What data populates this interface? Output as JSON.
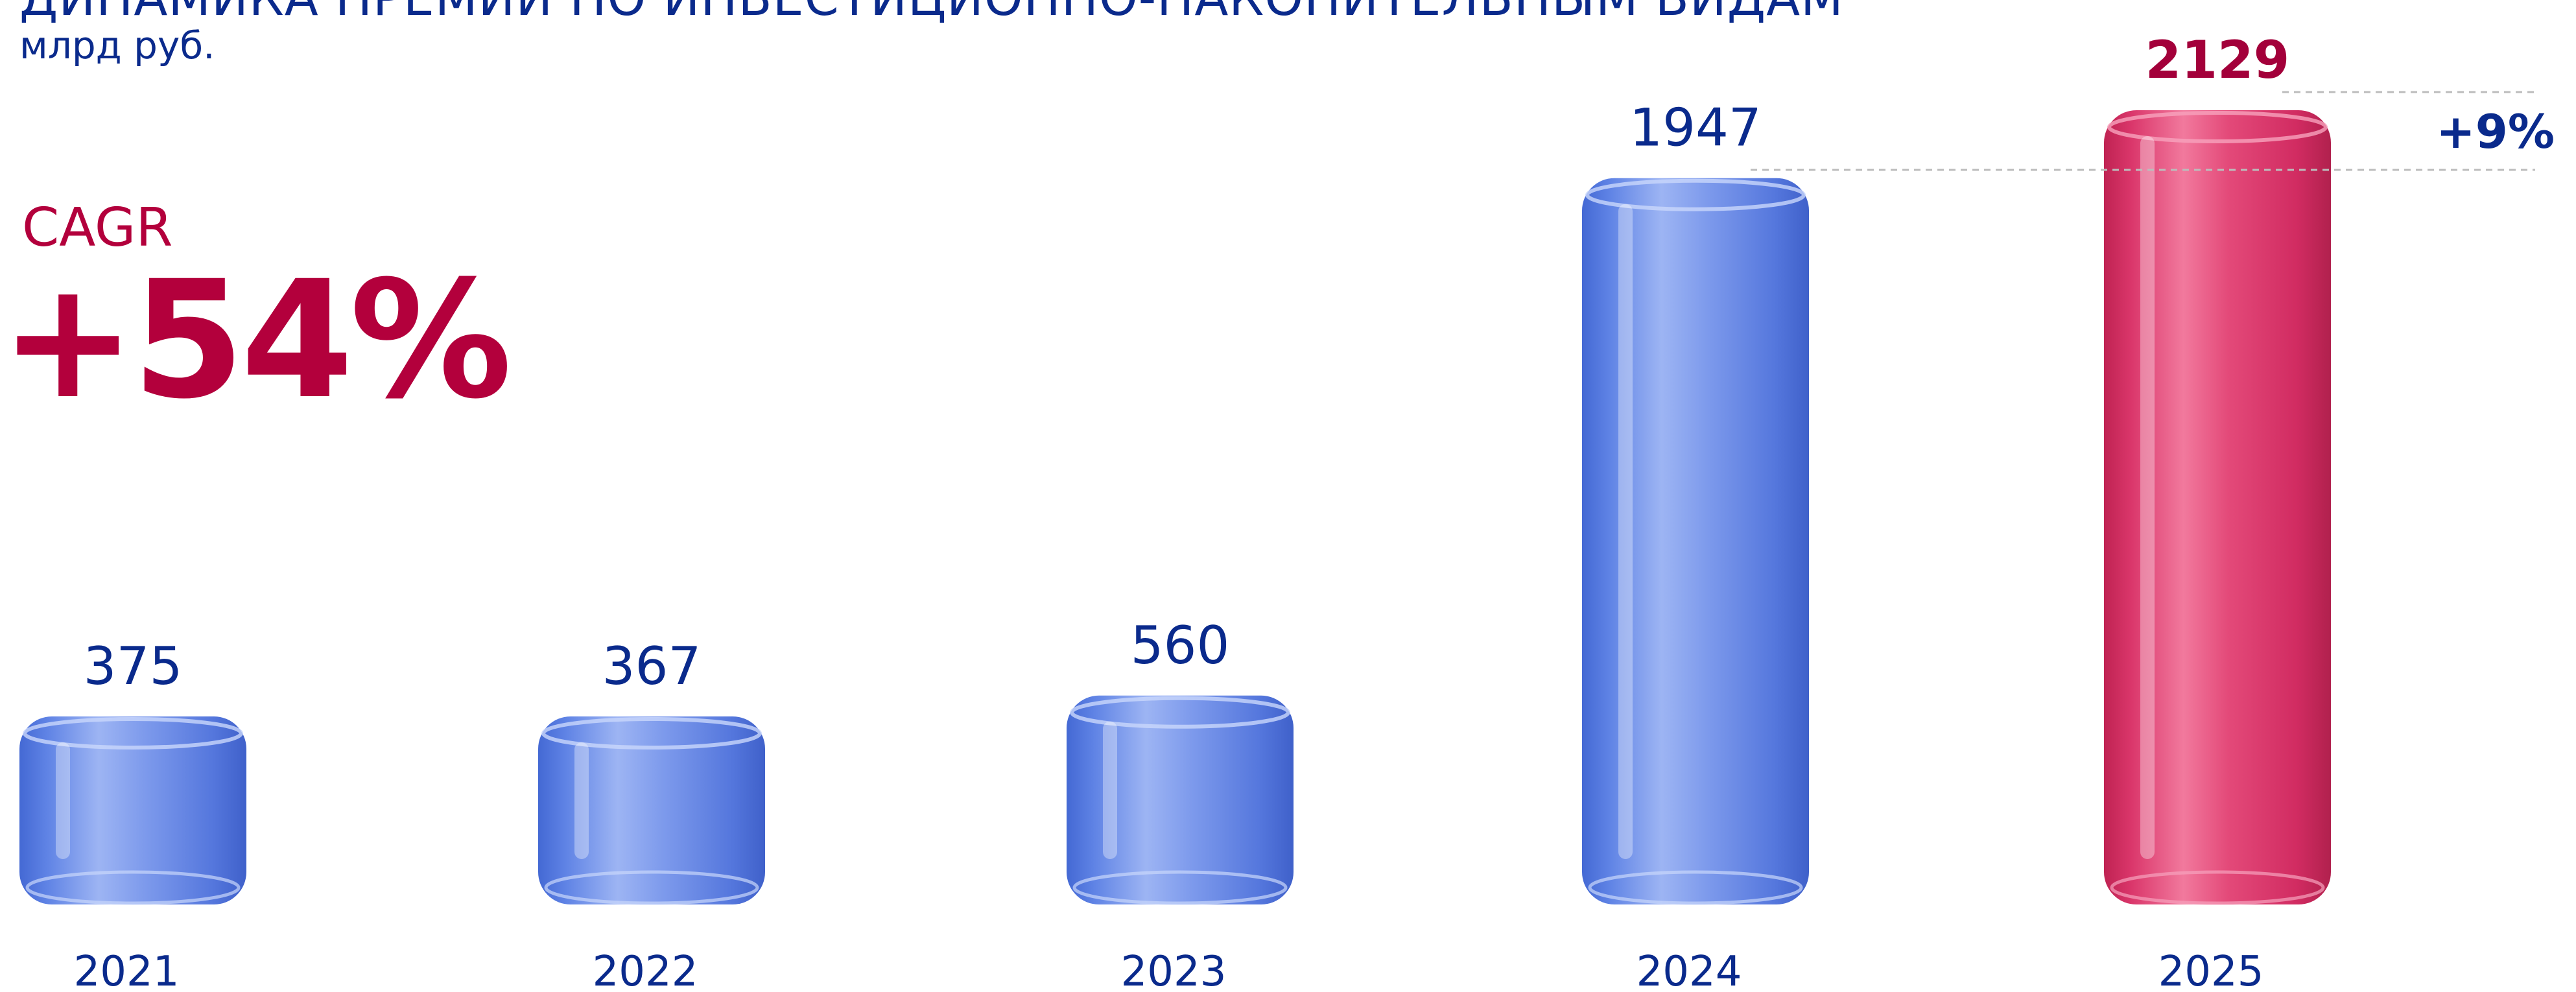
{
  "title": "ДИНАМИКА ПРЕМИИ ПО ИНВЕСТИЦИОННО-НАКОПИТЕЛЬНЫМ ВИДАМ",
  "subtitle": "млрд руб.",
  "cagr": {
    "label": "CAGR",
    "value": "+54%"
  },
  "growth_annotation": "+9%",
  "colors": {
    "bar": "#3a63d6",
    "highlight": "#c8104a",
    "text": "#0a2a8c",
    "accent": "#b3003c"
  },
  "chart_data": {
    "type": "bar",
    "categories": [
      "2021",
      "2022",
      "2023",
      "2024",
      "2025"
    ],
    "values": [
      375,
      367,
      560,
      1947,
      2129
    ],
    "highlight_index": 4,
    "title": "ДИНАМИКА ПРЕМИИ ПО ИНВЕСТИЦИОННО-НАКОПИТЕЛЬНЫМ ВИДАМ",
    "ylabel": "млрд руб.",
    "ylim": [
      0,
      2129
    ],
    "grid": false
  }
}
